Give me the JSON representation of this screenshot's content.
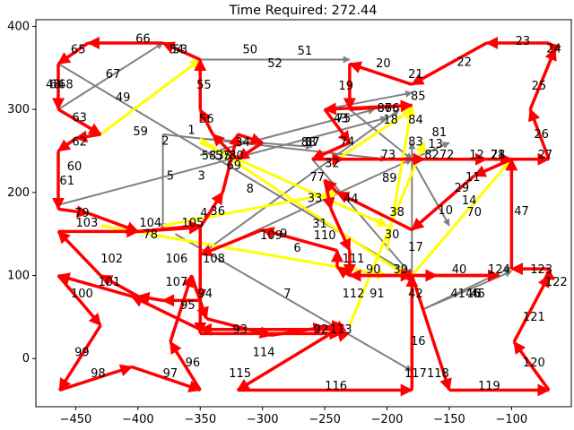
{
  "chart_data": {
    "type": "directed-graph-route",
    "title": "Time Required: 272.44",
    "xlabel": "",
    "ylabel": "",
    "xlim": [
      -482,
      -52
    ],
    "ylim": [
      -58,
      408
    ],
    "xticks": [
      -450,
      -400,
      -350,
      -300,
      -250,
      -200,
      -150,
      -100
    ],
    "yticks": [
      0,
      100,
      200,
      300,
      400
    ],
    "xtick_labels": [
      "−450",
      "−400",
      "−350",
      "−300",
      "−250",
      "−200",
      "−150",
      "−100"
    ],
    "ytick_labels": [
      "0",
      "100",
      "200",
      "300",
      "400"
    ],
    "colors": {
      "route": "#ff0000",
      "highlight": "#ffff00",
      "other": "#808080"
    },
    "nodes": [
      {
        "id": "1",
        "x": -357,
        "y": 275
      },
      {
        "id": "2",
        "x": -378,
        "y": 262
      },
      {
        "id": "3",
        "x": -349,
        "y": 220
      },
      {
        "id": "4",
        "x": -347,
        "y": 175
      },
      {
        "id": "5",
        "x": -374,
        "y": 220
      },
      {
        "id": "6",
        "x": -272,
        "y": 133
      },
      {
        "id": "7",
        "x": -280,
        "y": 78
      },
      {
        "id": "8",
        "x": -310,
        "y": 204
      },
      {
        "id": "9",
        "x": -283,
        "y": 150
      },
      {
        "id": "10",
        "x": -153,
        "y": 178
      },
      {
        "id": "11",
        "x": -131,
        "y": 218
      },
      {
        "id": "12",
        "x": -128,
        "y": 245
      },
      {
        "id": "13",
        "x": -161,
        "y": 258
      },
      {
        "id": "14",
        "x": -134,
        "y": 190
      },
      {
        "id": "15",
        "x": -130,
        "y": 78
      },
      {
        "id": "16",
        "x": -175,
        "y": 21
      },
      {
        "id": "17",
        "x": -177,
        "y": 134
      },
      {
        "id": "18",
        "x": -197,
        "y": 287
      },
      {
        "id": "19",
        "x": -233,
        "y": 328
      },
      {
        "id": "20",
        "x": -203,
        "y": 355
      },
      {
        "id": "21",
        "x": -177,
        "y": 342
      },
      {
        "id": "22",
        "x": -138,
        "y": 357
      },
      {
        "id": "23",
        "x": -91,
        "y": 382
      },
      {
        "id": "24",
        "x": -66,
        "y": 373
      },
      {
        "id": "25",
        "x": -78,
        "y": 328
      },
      {
        "id": "26",
        "x": -76,
        "y": 270
      },
      {
        "id": "27",
        "x": -73,
        "y": 245
      },
      {
        "id": "28",
        "x": -111,
        "y": 245
      },
      {
        "id": "29",
        "x": -140,
        "y": 205
      },
      {
        "id": "30",
        "x": -196,
        "y": 149
      },
      {
        "id": "31",
        "x": -254,
        "y": 162
      },
      {
        "id": "32",
        "x": -244,
        "y": 235
      },
      {
        "id": "33",
        "x": -258,
        "y": 193
      },
      {
        "id": "34",
        "x": -316,
        "y": 260
      },
      {
        "id": "35",
        "x": -331,
        "y": 244
      },
      {
        "id": "36",
        "x": -336,
        "y": 177
      },
      {
        "id": "37",
        "x": -260,
        "y": 260
      },
      {
        "id": "38",
        "x": -192,
        "y": 176
      },
      {
        "id": "39",
        "x": -189,
        "y": 107
      },
      {
        "id": "40",
        "x": -142,
        "y": 107
      },
      {
        "id": "41",
        "x": -143,
        "y": 78
      },
      {
        "id": "42",
        "x": -177,
        "y": 78
      },
      {
        "id": "43",
        "x": -237,
        "y": 289
      },
      {
        "id": "44",
        "x": -229,
        "y": 192
      },
      {
        "id": "45",
        "x": -127,
        "y": 78
      },
      {
        "id": "46",
        "x": -131,
        "y": 78
      },
      {
        "id": "47",
        "x": -92,
        "y": 177
      },
      {
        "id": "48",
        "x": -468,
        "y": 330
      },
      {
        "id": "49",
        "x": -412,
        "y": 314
      },
      {
        "id": "50",
        "x": -310,
        "y": 372
      },
      {
        "id": "51",
        "x": -266,
        "y": 370
      },
      {
        "id": "52",
        "x": -290,
        "y": 355
      },
      {
        "id": "53",
        "x": -366,
        "y": 372
      },
      {
        "id": "54",
        "x": -369,
        "y": 372
      },
      {
        "id": "55",
        "x": -347,
        "y": 329
      },
      {
        "id": "56",
        "x": -345,
        "y": 288
      },
      {
        "id": "57",
        "x": -332,
        "y": 244
      },
      {
        "id": "58",
        "x": -343,
        "y": 244
      },
      {
        "id": "59",
        "x": -398,
        "y": 273
      },
      {
        "id": "60",
        "x": -451,
        "y": 231
      },
      {
        "id": "61",
        "x": -457,
        "y": 214
      },
      {
        "id": "62",
        "x": -447,
        "y": 261
      },
      {
        "id": "63",
        "x": -447,
        "y": 290
      },
      {
        "id": "64",
        "x": -465,
        "y": 330
      },
      {
        "id": "65",
        "x": -448,
        "y": 372
      },
      {
        "id": "66",
        "x": -396,
        "y": 385
      },
      {
        "id": "67",
        "x": -420,
        "y": 342
      },
      {
        "id": "68",
        "x": -458,
        "y": 330
      },
      {
        "id": "69",
        "x": -323,
        "y": 232
      },
      {
        "id": "70",
        "x": -130,
        "y": 176
      },
      {
        "id": "71",
        "x": -111,
        "y": 245
      },
      {
        "id": "72",
        "x": -152,
        "y": 245
      },
      {
        "id": "73",
        "x": -199,
        "y": 245
      },
      {
        "id": "74",
        "x": -232,
        "y": 261
      },
      {
        "id": "75",
        "x": -235,
        "y": 289
      },
      {
        "id": "76",
        "x": -196,
        "y": 301
      },
      {
        "id": "77",
        "x": -256,
        "y": 218
      },
      {
        "id": "78",
        "x": -390,
        "y": 149
      },
      {
        "id": "79",
        "x": -445,
        "y": 175
      },
      {
        "id": "80",
        "x": -321,
        "y": 244
      },
      {
        "id": "81",
        "x": -158,
        "y": 272
      },
      {
        "id": "82",
        "x": -164,
        "y": 245
      },
      {
        "id": "83",
        "x": -177,
        "y": 261
      },
      {
        "id": "84",
        "x": -177,
        "y": 287
      },
      {
        "id": "85",
        "x": -175,
        "y": 316
      },
      {
        "id": "86",
        "x": -202,
        "y": 301
      },
      {
        "id": "87",
        "x": -260,
        "y": 260
      },
      {
        "id": "88",
        "x": -263,
        "y": 260
      },
      {
        "id": "89",
        "x": -198,
        "y": 217
      },
      {
        "id": "90",
        "x": -211,
        "y": 107
      },
      {
        "id": "91",
        "x": -208,
        "y": 78
      },
      {
        "id": "92",
        "x": -253,
        "y": 35
      },
      {
        "id": "93",
        "x": -318,
        "y": 35
      },
      {
        "id": "94",
        "x": -346,
        "y": 78
      },
      {
        "id": "95",
        "x": -360,
        "y": 64
      },
      {
        "id": "96",
        "x": -356,
        "y": -5
      },
      {
        "id": "97",
        "x": -374,
        "y": -18
      },
      {
        "id": "98",
        "x": -432,
        "y": -18
      },
      {
        "id": "99",
        "x": -445,
        "y": 7
      },
      {
        "id": "100",
        "x": -445,
        "y": 78
      },
      {
        "id": "101",
        "x": -423,
        "y": 92
      },
      {
        "id": "102",
        "x": -421,
        "y": 120
      },
      {
        "id": "103",
        "x": -441,
        "y": 163
      },
      {
        "id": "104",
        "x": -390,
        "y": 163
      },
      {
        "id": "105",
        "x": -356,
        "y": 163
      },
      {
        "id": "106",
        "x": -369,
        "y": 120
      },
      {
        "id": "107",
        "x": -369,
        "y": 92
      },
      {
        "id": "108",
        "x": -339,
        "y": 120
      },
      {
        "id": "109",
        "x": -293,
        "y": 148
      },
      {
        "id": "110",
        "x": -250,
        "y": 148
      },
      {
        "id": "111",
        "x": -227,
        "y": 120
      },
      {
        "id": "112",
        "x": -227,
        "y": 78
      },
      {
        "id": "113",
        "x": -237,
        "y": 35
      },
      {
        "id": "114",
        "x": -299,
        "y": 7
      },
      {
        "id": "115",
        "x": -318,
        "y": -18
      },
      {
        "id": "116",
        "x": -241,
        "y": -33
      },
      {
        "id": "117",
        "x": -177,
        "y": -18
      },
      {
        "id": "118",
        "x": -159,
        "y": -18
      },
      {
        "id": "119",
        "x": -118,
        "y": -33
      },
      {
        "id": "120",
        "x": -82,
        "y": -5
      },
      {
        "id": "121",
        "x": -82,
        "y": 50
      },
      {
        "id": "122",
        "x": -64,
        "y": 92
      },
      {
        "id": "123",
        "x": -76,
        "y": 107
      },
      {
        "id": "124",
        "x": -110,
        "y": 107
      }
    ],
    "route_points": [
      [
        -463,
        -38
      ],
      [
        -405,
        -10
      ],
      [
        -350,
        -38
      ],
      [
        -374,
        20
      ],
      [
        -357,
        100
      ],
      [
        -345,
        48
      ],
      [
        -293,
        28
      ],
      [
        -250,
        38
      ],
      [
        -235,
        40
      ],
      [
        -243,
        32
      ],
      [
        -320,
        -38
      ],
      [
        -180,
        -38
      ],
      [
        -180,
        100
      ],
      [
        -150,
        -38
      ],
      [
        -70,
        -38
      ],
      [
        -98,
        20
      ],
      [
        -70,
        100
      ],
      [
        -70,
        108
      ],
      [
        -100,
        108
      ],
      [
        -100,
        240
      ],
      [
        -70,
        240
      ],
      [
        -85,
        300
      ],
      [
        -65,
        373
      ],
      [
        -70,
        380
      ],
      [
        -120,
        380
      ],
      [
        -180,
        330
      ],
      [
        -230,
        355
      ],
      [
        -230,
        300
      ],
      [
        -180,
        305
      ],
      [
        -250,
        300
      ],
      [
        -230,
        260
      ],
      [
        -260,
        240
      ],
      [
        -235,
        240
      ],
      [
        -170,
        240
      ],
      [
        -120,
        240
      ],
      [
        -100,
        240
      ],
      [
        -130,
        220
      ],
      [
        -180,
        155
      ],
      [
        -240,
        200
      ],
      [
        -250,
        215
      ],
      [
        -245,
        180
      ],
      [
        -230,
        130
      ],
      [
        -230,
        100
      ],
      [
        -180,
        100
      ],
      [
        -160,
        100
      ],
      [
        -110,
        100
      ],
      [
        -190,
        100
      ],
      [
        -230,
        100
      ],
      [
        -240,
        110
      ],
      [
        -240,
        130
      ],
      [
        -300,
        155
      ],
      [
        -350,
        125
      ],
      [
        -350,
        70
      ],
      [
        -380,
        70
      ],
      [
        -400,
        75
      ],
      [
        -430,
        100
      ],
      [
        -464,
        153
      ],
      [
        -400,
        153
      ],
      [
        -350,
        158
      ],
      [
        -332,
        200
      ],
      [
        -320,
        270
      ],
      [
        -300,
        260
      ],
      [
        -320,
        240
      ],
      [
        -340,
        270
      ],
      [
        -350,
        300
      ],
      [
        -350,
        360
      ],
      [
        -380,
        380
      ],
      [
        -440,
        380
      ],
      [
        -464,
        355
      ],
      [
        -464,
        300
      ],
      [
        -430,
        270
      ],
      [
        -450,
        265
      ],
      [
        -464,
        250
      ],
      [
        -464,
        180
      ],
      [
        -440,
        175
      ],
      [
        -400,
        153
      ],
      [
        -350,
        160
      ],
      [
        -350,
        30
      ],
      [
        -237,
        30
      ],
      [
        -240,
        35
      ],
      [
        -350,
        35
      ],
      [
        -405,
        75
      ],
      [
        -464,
        100
      ],
      [
        -430,
        40
      ],
      [
        -463,
        -38
      ]
    ],
    "highlight_segments": [
      [
        [
          -430,
          270
        ],
        [
          -350,
          360
        ]
      ],
      [
        [
          -380,
          160
        ],
        [
          -240,
          200
        ]
      ],
      [
        [
          -430,
          160
        ],
        [
          -200,
          100
        ]
      ],
      [
        [
          -350,
          265
        ],
        [
          -185,
          100
        ]
      ],
      [
        [
          -240,
          240
        ],
        [
          -180,
          300
        ]
      ],
      [
        [
          -200,
          130
        ],
        [
          -180,
          305
        ]
      ],
      [
        [
          -180,
          100
        ],
        [
          -100,
          240
        ]
      ],
      [
        [
          -230,
          40
        ],
        [
          -170,
          260
        ]
      ],
      [
        [
          -350,
          260
        ],
        [
          -200,
          160
        ]
      ]
    ],
    "other_segments": [
      [
        [
          -464,
          300
        ],
        [
          -380,
          380
        ]
      ],
      [
        [
          -464,
          355
        ],
        [
          -180,
          100
        ]
      ],
      [
        [
          -380,
          270
        ],
        [
          -380,
          155
        ]
      ],
      [
        [
          -464,
          185
        ],
        [
          -200,
          290
        ]
      ],
      [
        [
          -350,
          360
        ],
        [
          -230,
          360
        ]
      ],
      [
        [
          -380,
          270
        ],
        [
          -200,
          240
        ]
      ],
      [
        [
          -350,
          265
        ],
        [
          -260,
          255
        ]
      ],
      [
        [
          -180,
          240
        ],
        [
          -150,
          260
        ]
      ],
      [
        [
          -180,
          -20
        ],
        [
          -180,
          260
        ]
      ],
      [
        [
          -250,
          300
        ],
        [
          -180,
          320
        ]
      ],
      [
        [
          -230,
          300
        ],
        [
          -180,
          240
        ]
      ],
      [
        [
          -180,
          240
        ],
        [
          -150,
          160
        ]
      ],
      [
        [
          -170,
          60
        ],
        [
          -100,
          110
        ]
      ],
      [
        [
          -370,
          150
        ],
        [
          -180,
          -15
        ]
      ],
      [
        [
          -350,
          125
        ],
        [
          -190,
          300
        ]
      ],
      [
        [
          -340,
          130
        ],
        [
          -180,
          240
        ]
      ],
      [
        [
          -260,
          240
        ],
        [
          -180,
          100
        ]
      ],
      [
        [
          -350,
          245
        ],
        [
          -210,
          300
        ]
      ],
      [
        [
          -170,
          60
        ],
        [
          -100,
          105
        ]
      ]
    ],
    "node_labels": [
      "1",
      "2",
      "3",
      "4",
      "5",
      "6",
      "7",
      "8",
      "9",
      "10",
      "11",
      "12",
      "13",
      "14",
      "15",
      "16",
      "17",
      "18",
      "19",
      "20",
      "21",
      "22",
      "23",
      "24",
      "25",
      "26",
      "27",
      "28",
      "29",
      "30",
      "31",
      "32",
      "33",
      "34",
      "35",
      "36",
      "37",
      "38",
      "39",
      "40",
      "41",
      "42",
      "43",
      "44",
      "45",
      "46",
      "47",
      "48",
      "49",
      "50",
      "51",
      "52",
      "53",
      "54",
      "55",
      "56",
      "57",
      "58",
      "59",
      "60",
      "61",
      "62",
      "63",
      "64",
      "65",
      "66",
      "67",
      "68",
      "69",
      "70",
      "71",
      "72",
      "73",
      "74",
      "75",
      "76",
      "77",
      "78",
      "79",
      "80",
      "81",
      "82",
      "83",
      "84",
      "85",
      "86",
      "87",
      "88",
      "89",
      "90",
      "91",
      "92",
      "93",
      "94",
      "95",
      "96",
      "97",
      "98",
      "99",
      "100",
      "101",
      "102",
      "103",
      "104",
      "105",
      "106",
      "107",
      "108",
      "109",
      "110",
      "111",
      "112",
      "113",
      "114",
      "115",
      "116",
      "117",
      "118",
      "119",
      "120",
      "121",
      "122",
      "123",
      "124"
    ]
  }
}
